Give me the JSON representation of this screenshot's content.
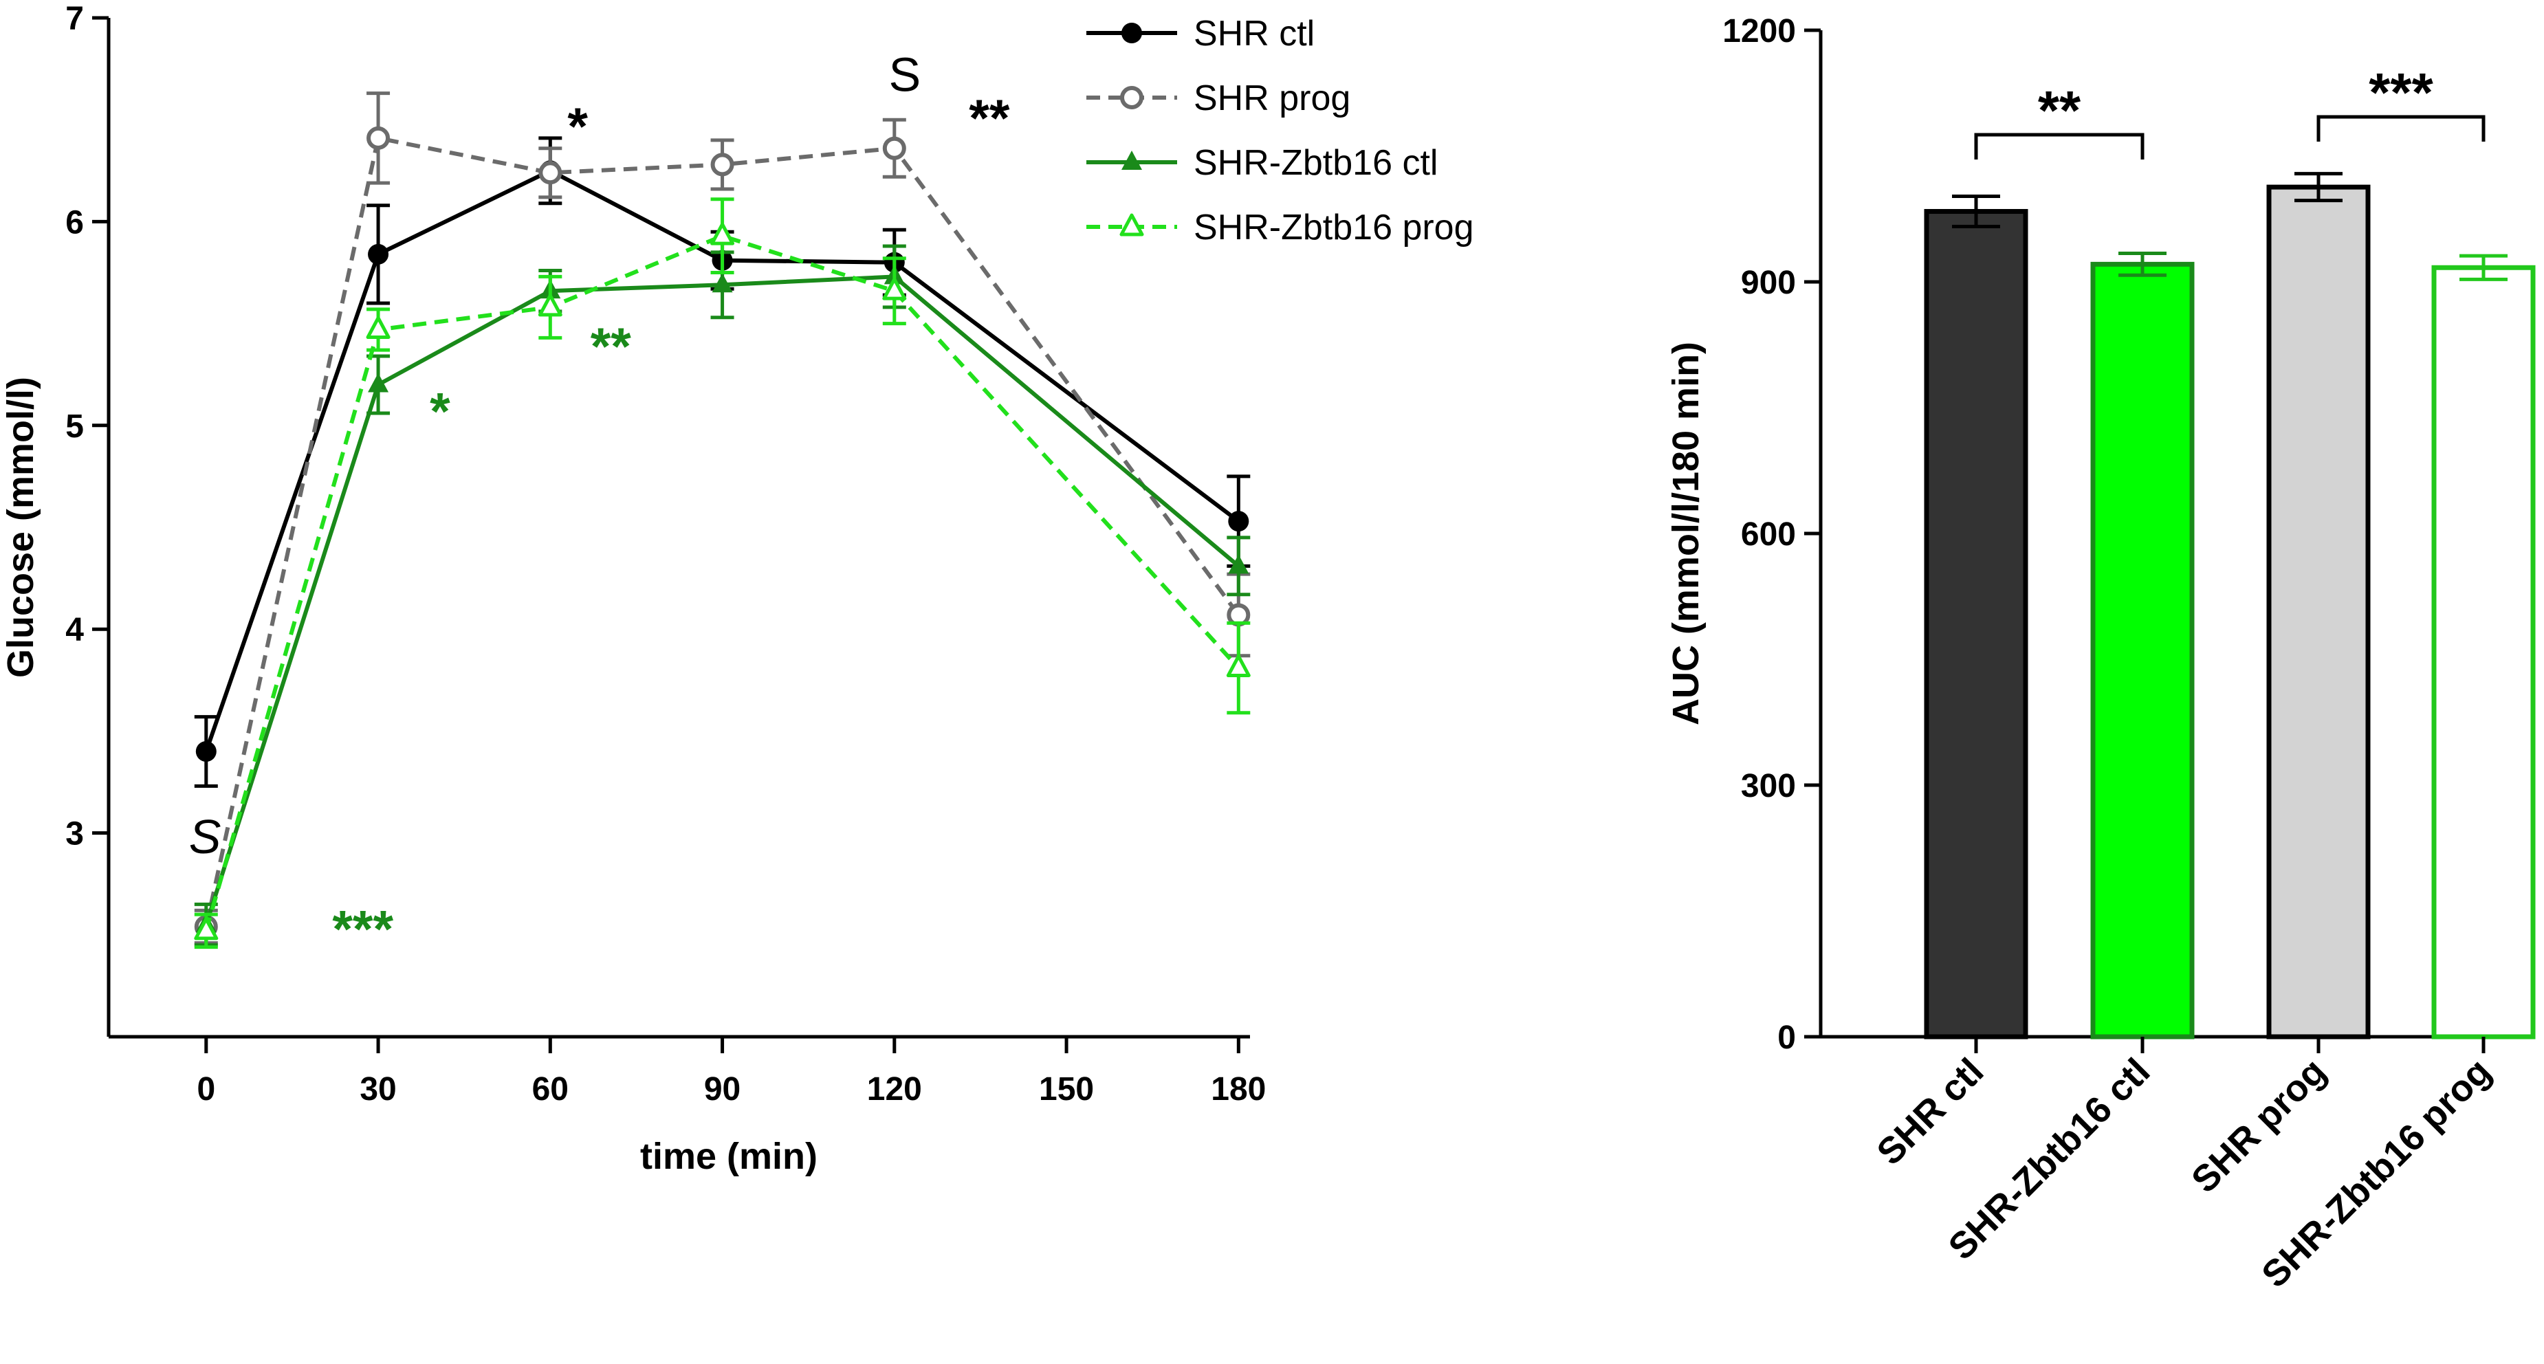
{
  "chart_data": [
    {
      "type": "line",
      "title": "",
      "xlabel": "time (min)",
      "ylabel": "Glucose (mmol/l)",
      "xlim": [
        -17,
        182
      ],
      "ylim": [
        2.0,
        7.0
      ],
      "xticks": [
        "0",
        "30",
        "60",
        "90",
        "120",
        "150",
        "180"
      ],
      "yticks": [
        "3",
        "4",
        "5",
        "6",
        "7"
      ],
      "legend_position": "top-right",
      "series": [
        {
          "name": "SHR ctl",
          "color": "#000000",
          "dashed": false,
          "marker": "filled-circle",
          "x": [
            0,
            30,
            60,
            90,
            120,
            180
          ],
          "y": [
            3.4,
            5.84,
            6.25,
            5.81,
            5.8,
            4.53
          ],
          "err": [
            0.17,
            0.24,
            0.16,
            0.14,
            0.16,
            0.22
          ]
        },
        {
          "name": "SHR prog",
          "color": "#6b6b6b",
          "dashed": true,
          "marker": "open-circle",
          "x": [
            0,
            30,
            60,
            90,
            120,
            180
          ],
          "y": [
            2.54,
            6.41,
            6.24,
            6.28,
            6.36,
            4.07
          ],
          "err": [
            0.08,
            0.22,
            0.12,
            0.12,
            0.14,
            0.2
          ]
        },
        {
          "name": "SHR-Zbtb16 ctl",
          "color": "#1a8a1a",
          "dashed": false,
          "marker": "filled-triangle",
          "x": [
            0,
            30,
            60,
            90,
            120,
            180
          ],
          "y": [
            2.55,
            5.2,
            5.66,
            5.69,
            5.73,
            4.31
          ],
          "err": [
            0.1,
            0.14,
            0.1,
            0.16,
            0.15,
            0.14
          ]
        },
        {
          "name": "SHR-Zbtb16 prog",
          "color": "#22e01c",
          "dashed": true,
          "marker": "open-triangle",
          "x": [
            0,
            30,
            60,
            90,
            120,
            180
          ],
          "y": [
            2.52,
            5.47,
            5.58,
            5.93,
            5.66,
            3.81
          ],
          "err": [
            0.08,
            0.1,
            0.15,
            0.18,
            0.16,
            0.22
          ]
        }
      ],
      "annotations": [
        {
          "text": "S",
          "x": -3,
          "y": 2.9,
          "color": "#000000",
          "italic": true
        },
        {
          "text": "***",
          "x": 22,
          "y": 2.44,
          "color": "#1a8a1a"
        },
        {
          "text": "*",
          "x": 39,
          "y": 4.98,
          "color": "#1a8a1a"
        },
        {
          "text": "**",
          "x": 67,
          "y": 5.3,
          "color": "#1a8a1a"
        },
        {
          "text": "*",
          "x": 63,
          "y": 6.38,
          "color": "#000000"
        },
        {
          "text": "S",
          "x": 119,
          "y": 6.64,
          "color": "#000000",
          "italic": false
        },
        {
          "text": "**",
          "x": 133,
          "y": 6.42,
          "color": "#000000"
        }
      ]
    },
    {
      "type": "bar",
      "title": "",
      "xlabel": "",
      "ylabel": "AUC (mmol/l/180 min)",
      "ylim": [
        0,
        1200
      ],
      "yticks": [
        "0",
        "300",
        "600",
        "900",
        "1200"
      ],
      "categories": [
        "SHR ctl",
        "SHR-Zbtb16 ctl",
        "SHR prog",
        "SHR-Zbtb16 prog"
      ],
      "values": [
        984,
        921,
        1013,
        917
      ],
      "errors": [
        18,
        13,
        16,
        14
      ],
      "fills": [
        "#333333",
        "#00ff00",
        "#d3d3d3",
        "#ffffff"
      ],
      "strokes": [
        "#000000",
        "#1a8a1a",
        "#000000",
        "#22c81c"
      ],
      "significance": [
        {
          "between": [
            0,
            1
          ],
          "label": "**"
        },
        {
          "between": [
            2,
            3
          ],
          "label": "***"
        }
      ]
    }
  ]
}
